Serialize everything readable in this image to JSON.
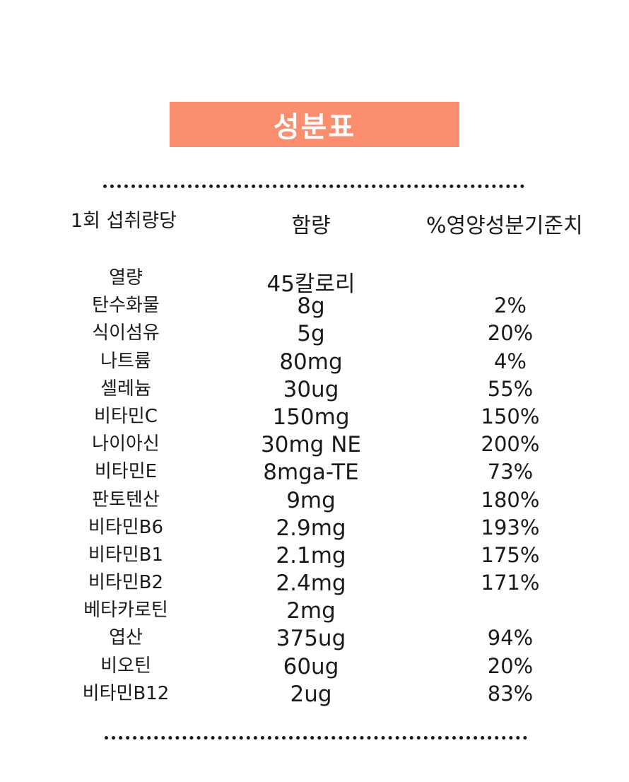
{
  "title": "성분표",
  "headers": {
    "serving": "1회 섭취량당",
    "amount": "함량",
    "daily_value": "%영양성분기준치"
  },
  "rows": [
    {
      "name": "열량",
      "amount": "45칼로리",
      "pct": ""
    },
    {
      "name": "탄수화물",
      "amount": "8g",
      "pct": "2%"
    },
    {
      "name": "식이섬유",
      "amount": "5g",
      "pct": "20%"
    },
    {
      "name": "나트륨",
      "amount": "80mg",
      "pct": "4%"
    },
    {
      "name": "셀레늄",
      "amount": "30ug",
      "pct": "55%"
    },
    {
      "name": "비타민C",
      "amount": "150mg",
      "pct": "150%"
    },
    {
      "name": "나이아신",
      "amount": "30mg NE",
      "pct": "200%"
    },
    {
      "name": "비타민E",
      "amount": "8mga-TE",
      "pct": "73%"
    },
    {
      "name": "판토텐산",
      "amount": "9mg",
      "pct": "180%"
    },
    {
      "name": "비타민B6",
      "amount": "2.9mg",
      "pct": "193%"
    },
    {
      "name": "비타민B1",
      "amount": "2.1mg",
      "pct": "175%"
    },
    {
      "name": "비타민B2",
      "amount": "2.4mg",
      "pct": "171%"
    },
    {
      "name": "베타카로틴",
      "amount": "2mg",
      "pct": ""
    },
    {
      "name": "엽산",
      "amount": "375ug",
      "pct": "94%"
    },
    {
      "name": "비오틴",
      "amount": "60ug",
      "pct": "20%"
    },
    {
      "name": "비타민B12",
      "amount": "2ug",
      "pct": "83%"
    }
  ],
  "colors": {
    "title_bg": "#fb8e6f",
    "title_text": "#ffffff",
    "text": "#1a1a1a"
  }
}
